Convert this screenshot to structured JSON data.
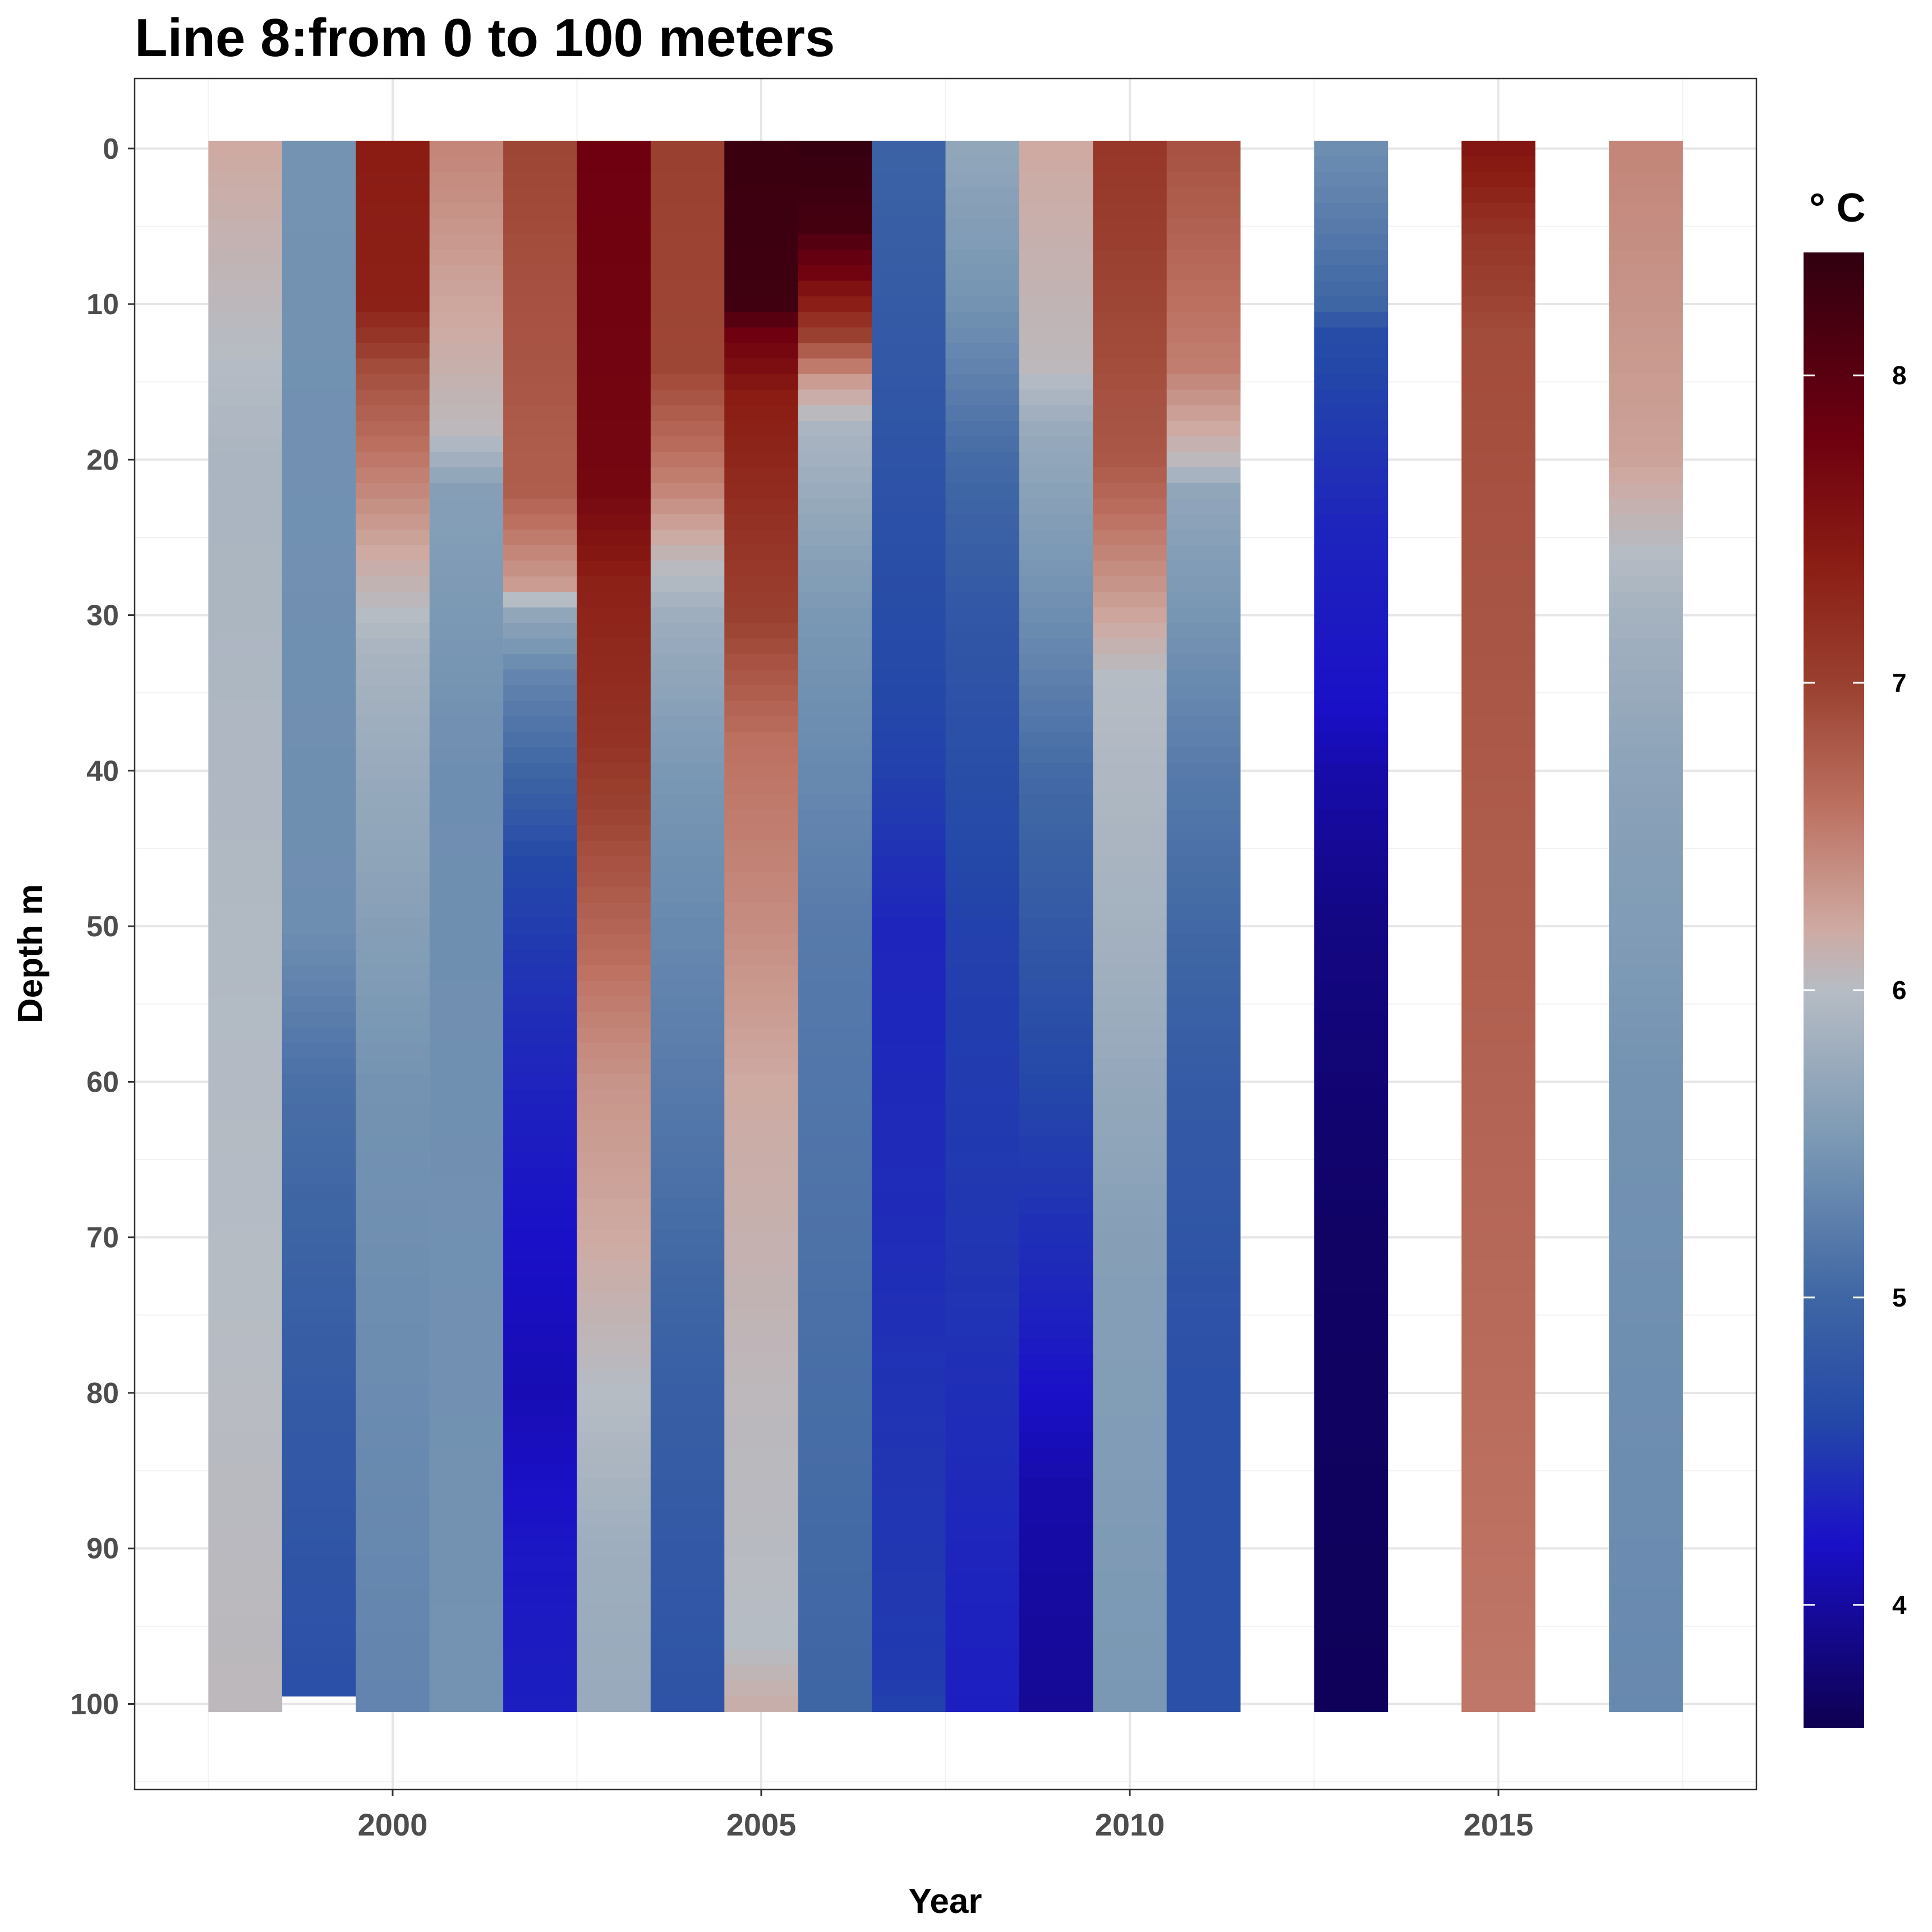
{
  "chart_data": {
    "type": "heatmap",
    "title": "Line 8:from 0 to 100 meters",
    "xlabel": "Year",
    "ylabel": "Depth m",
    "xlim": [
      1996.5,
      2018.5
    ],
    "ylim": [
      105.5,
      -4.5
    ],
    "x_ticks": [
      "2000",
      "2005",
      "2010",
      "2015"
    ],
    "x_tick_values": [
      2000,
      2005,
      2010,
      2015
    ],
    "y_ticks": [
      "0",
      "10",
      "20",
      "30",
      "40",
      "50",
      "60",
      "70",
      "80",
      "90",
      "100"
    ],
    "y_tick_values": [
      0,
      10,
      20,
      30,
      40,
      50,
      60,
      70,
      80,
      90,
      100
    ],
    "grid": true,
    "legend": {
      "title": "° C",
      "position": "right",
      "ticks": [
        "4",
        "5",
        "6",
        "7",
        "8"
      ],
      "tick_values": [
        4,
        5,
        6,
        7,
        8
      ],
      "range": [
        3.6,
        8.4
      ]
    },
    "color_scale": {
      "stops": [
        [
          3.6,
          "#0e0050"
        ],
        [
          4.2,
          "#1a10c8"
        ],
        [
          4.6,
          "#2448a8"
        ],
        [
          5.0,
          "#3f66a4"
        ],
        [
          5.5,
          "#7a98b4"
        ],
        [
          6.0,
          "#b6bcc4"
        ],
        [
          6.2,
          "#ceaaa2"
        ],
        [
          6.6,
          "#bc7060"
        ],
        [
          7.0,
          "#9a4030"
        ],
        [
          7.4,
          "#8a1c14"
        ],
        [
          7.8,
          "#6e0010"
        ],
        [
          8.4,
          "#300010"
        ]
      ]
    },
    "series": [
      {
        "year": 1998,
        "depth_max": 100,
        "profile": [
          [
            0,
            6.2
          ],
          [
            20,
            5.9
          ],
          [
            100,
            6.05
          ]
        ]
      },
      {
        "year": 1999,
        "depth_max": 99.5,
        "profile": [
          [
            0,
            5.45
          ],
          [
            50,
            5.4
          ],
          [
            60,
            5.1
          ],
          [
            80,
            4.85
          ],
          [
            99.5,
            4.7
          ]
        ]
      },
      {
        "year": 2000,
        "depth_max": 100,
        "profile": [
          [
            0,
            7.4
          ],
          [
            10,
            7.35
          ],
          [
            14,
            6.9
          ],
          [
            20,
            6.55
          ],
          [
            26,
            6.2
          ],
          [
            32,
            5.9
          ],
          [
            40,
            5.75
          ],
          [
            60,
            5.45
          ],
          [
            100,
            5.3
          ]
        ]
      },
      {
        "year": 2001,
        "depth_max": 100,
        "profile": [
          [
            0,
            6.45
          ],
          [
            18,
            6.05
          ],
          [
            22,
            5.6
          ],
          [
            40,
            5.4
          ],
          [
            100,
            5.45
          ]
        ]
      },
      {
        "year": 2002,
        "depth_max": 100,
        "profile": [
          [
            0,
            6.95
          ],
          [
            22,
            6.75
          ],
          [
            28,
            6.3
          ],
          [
            30,
            5.7
          ],
          [
            34,
            5.3
          ],
          [
            40,
            5.0
          ],
          [
            46,
            4.6
          ],
          [
            56,
            4.4
          ],
          [
            70,
            4.2
          ],
          [
            80,
            4.1
          ],
          [
            90,
            4.25
          ],
          [
            100,
            4.3
          ]
        ]
      },
      {
        "year": 2003,
        "depth_max": 100,
        "profile": [
          [
            0,
            7.8
          ],
          [
            22,
            7.7
          ],
          [
            28,
            7.35
          ],
          [
            38,
            7.15
          ],
          [
            46,
            6.85
          ],
          [
            54,
            6.55
          ],
          [
            60,
            6.35
          ],
          [
            70,
            6.2
          ],
          [
            80,
            6.0
          ],
          [
            90,
            5.8
          ],
          [
            100,
            5.75
          ]
        ]
      },
      {
        "year": 2004,
        "depth_max": 100,
        "profile": [
          [
            0,
            7.0
          ],
          [
            14,
            6.95
          ],
          [
            22,
            6.45
          ],
          [
            26,
            6.1
          ],
          [
            30,
            5.8
          ],
          [
            40,
            5.5
          ],
          [
            60,
            5.2
          ],
          [
            80,
            4.9
          ],
          [
            100,
            4.75
          ]
        ]
      },
      {
        "year": 2005,
        "depth_max": 100,
        "profile": [
          [
            0,
            8.3
          ],
          [
            10,
            8.25
          ],
          [
            12,
            7.8
          ],
          [
            16,
            7.4
          ],
          [
            30,
            7.0
          ],
          [
            38,
            6.6
          ],
          [
            50,
            6.4
          ],
          [
            60,
            6.2
          ],
          [
            80,
            6.05
          ],
          [
            96,
            6.0
          ],
          [
            100,
            6.15
          ]
        ]
      },
      {
        "year": 2006,
        "depth_max": 100,
        "profile": [
          [
            0,
            8.35
          ],
          [
            5,
            8.2
          ],
          [
            8,
            7.75
          ],
          [
            12,
            7.0
          ],
          [
            15,
            6.3
          ],
          [
            18,
            5.9
          ],
          [
            30,
            5.5
          ],
          [
            50,
            5.2
          ],
          [
            100,
            5.0
          ]
        ]
      },
      {
        "year": 2007,
        "depth_max": 100,
        "profile": [
          [
            0,
            4.95
          ],
          [
            20,
            4.75
          ],
          [
            40,
            4.55
          ],
          [
            50,
            4.35
          ],
          [
            70,
            4.4
          ],
          [
            80,
            4.45
          ],
          [
            98,
            4.5
          ],
          [
            100,
            4.55
          ]
        ]
      },
      {
        "year": 2008,
        "depth_max": 100,
        "profile": [
          [
            0,
            5.7
          ],
          [
            10,
            5.45
          ],
          [
            20,
            5.05
          ],
          [
            30,
            4.8
          ],
          [
            50,
            4.55
          ],
          [
            75,
            4.45
          ],
          [
            90,
            4.35
          ],
          [
            100,
            4.3
          ]
        ]
      },
      {
        "year": 2009,
        "depth_max": 100,
        "profile": [
          [
            0,
            6.2
          ],
          [
            14,
            6.05
          ],
          [
            18,
            5.75
          ],
          [
            30,
            5.4
          ],
          [
            40,
            5.05
          ],
          [
            60,
            4.6
          ],
          [
            76,
            4.3
          ],
          [
            86,
            4.05
          ],
          [
            100,
            3.95
          ]
        ]
      },
      {
        "year": 2010,
        "depth_max": 100,
        "profile": [
          [
            0,
            7.1
          ],
          [
            20,
            6.8
          ],
          [
            28,
            6.35
          ],
          [
            34,
            6.0
          ],
          [
            50,
            5.85
          ],
          [
            70,
            5.6
          ],
          [
            100,
            5.5
          ]
        ]
      },
      {
        "year": 2011,
        "depth_max": 100,
        "profile": [
          [
            0,
            6.85
          ],
          [
            14,
            6.5
          ],
          [
            20,
            6.05
          ],
          [
            22,
            5.7
          ],
          [
            40,
            5.2
          ],
          [
            60,
            4.85
          ],
          [
            80,
            4.7
          ],
          [
            100,
            4.7
          ]
        ]
      },
      {
        "year": 2013,
        "depth_max": 100,
        "profile": [
          [
            0,
            5.4
          ],
          [
            10,
            5.0
          ],
          [
            12,
            4.65
          ],
          [
            24,
            4.35
          ],
          [
            36,
            4.2
          ],
          [
            40,
            4.05
          ],
          [
            50,
            3.85
          ],
          [
            70,
            3.7
          ],
          [
            100,
            3.65
          ]
        ]
      },
      {
        "year": 2015,
        "depth_max": 100,
        "profile": [
          [
            0,
            7.5
          ],
          [
            6,
            7.1
          ],
          [
            12,
            6.9
          ],
          [
            50,
            6.75
          ],
          [
            100,
            6.55
          ]
        ]
      },
      {
        "year": 2017,
        "depth_max": 100,
        "profile": [
          [
            0,
            6.45
          ],
          [
            20,
            6.25
          ],
          [
            26,
            6.0
          ],
          [
            30,
            5.85
          ],
          [
            40,
            5.65
          ],
          [
            60,
            5.45
          ],
          [
            100,
            5.35
          ]
        ]
      }
    ]
  }
}
